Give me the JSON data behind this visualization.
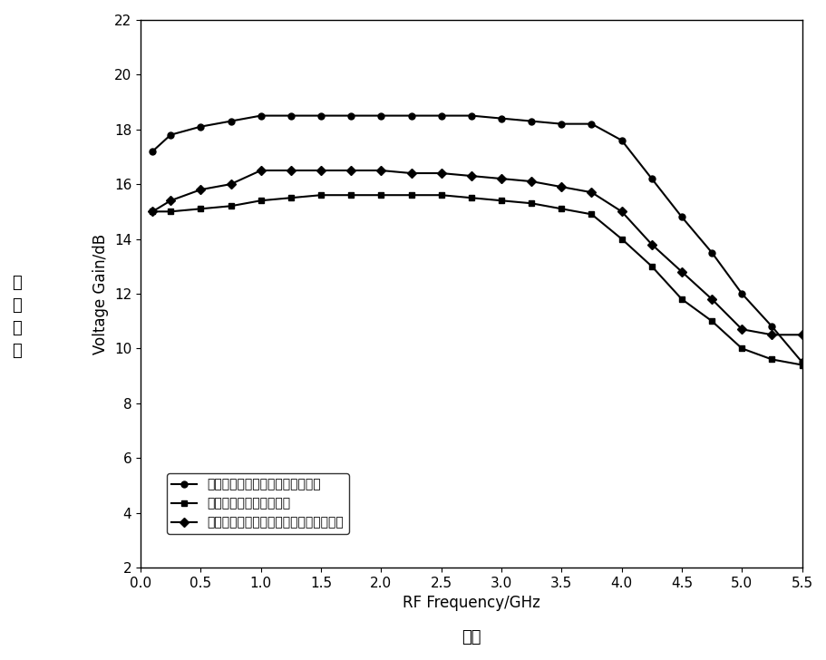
{
  "xlabel": "RF Frequency/GHz",
  "ylabel": "Voltage Gain/dB",
  "xlabel2": "频率",
  "ylabel_chinese": "电\n压\n增\n益",
  "xlim": [
    0,
    5.5
  ],
  "ylim": [
    2,
    22
  ],
  "xticks": [
    0,
    0.5,
    1.0,
    1.5,
    2.0,
    2.5,
    3.0,
    3.5,
    4.0,
    4.5,
    5.0,
    5.5
  ],
  "yticks": [
    2,
    4,
    6,
    8,
    10,
    12,
    14,
    16,
    18,
    20,
    22
  ],
  "curve1_label": "本专利所设计的巴伦低噪声放大器",
  "curve2_label": "传统共源共栅巴伦放大器",
  "curve3_label": "仅采用共栅隔离级的共源共栅巴伦放大器",
  "curve1_x": [
    0.1,
    0.25,
    0.5,
    0.75,
    1.0,
    1.25,
    1.5,
    1.75,
    2.0,
    2.25,
    2.5,
    2.75,
    3.0,
    3.25,
    3.5,
    3.75,
    4.0,
    4.25,
    4.5,
    4.75,
    5.0,
    5.25,
    5.5
  ],
  "curve1_y": [
    17.2,
    17.8,
    18.1,
    18.3,
    18.5,
    18.5,
    18.5,
    18.5,
    18.5,
    18.5,
    18.5,
    18.5,
    18.4,
    18.3,
    18.2,
    18.2,
    17.6,
    16.2,
    14.8,
    13.5,
    12.0,
    10.8,
    9.5
  ],
  "curve2_x": [
    0.1,
    0.25,
    0.5,
    0.75,
    1.0,
    1.25,
    1.5,
    1.75,
    2.0,
    2.25,
    2.5,
    2.75,
    3.0,
    3.25,
    3.5,
    3.75,
    4.0,
    4.25,
    4.5,
    4.75,
    5.0,
    5.25,
    5.5
  ],
  "curve2_y": [
    15.0,
    15.0,
    15.1,
    15.2,
    15.4,
    15.5,
    15.6,
    15.6,
    15.6,
    15.6,
    15.6,
    15.5,
    15.4,
    15.3,
    15.1,
    14.9,
    14.0,
    13.0,
    11.8,
    11.0,
    10.0,
    9.6,
    9.4
  ],
  "curve3_x": [
    0.1,
    0.25,
    0.5,
    0.75,
    1.0,
    1.25,
    1.5,
    1.75,
    2.0,
    2.25,
    2.5,
    2.75,
    3.0,
    3.25,
    3.5,
    3.75,
    4.0,
    4.25,
    4.5,
    4.75,
    5.0,
    5.25,
    5.5
  ],
  "curve3_y": [
    15.0,
    15.4,
    15.8,
    16.0,
    16.5,
    16.5,
    16.5,
    16.5,
    16.5,
    16.4,
    16.4,
    16.3,
    16.2,
    16.1,
    15.9,
    15.7,
    15.0,
    13.8,
    12.8,
    11.8,
    10.7,
    10.5,
    10.5
  ],
  "line_color": "#000000",
  "bg_color": "#ffffff",
  "marker1": "o",
  "marker2": "s",
  "marker3": "D",
  "markersize": 5,
  "linewidth": 1.5,
  "legend_fontsize": 10,
  "axis_fontsize": 12,
  "tick_fontsize": 11,
  "chinese_fontsize": 13,
  "figsize": [
    9.12,
    7.28
  ],
  "dpi": 100
}
